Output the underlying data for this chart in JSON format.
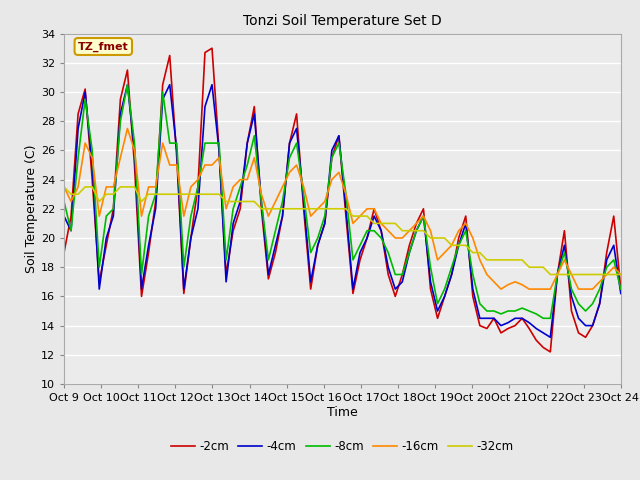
{
  "title": "Tonzi Soil Temperature Set D",
  "xlabel": "Time",
  "ylabel": "Soil Temperature (C)",
  "ylim": [
    10,
    34
  ],
  "yticks": [
    10,
    12,
    14,
    16,
    18,
    20,
    22,
    24,
    26,
    28,
    30,
    32,
    34
  ],
  "xtick_labels": [
    "Oct 9",
    "Oct 10",
    "Oct 11",
    "Oct 12",
    "Oct 13",
    "Oct 14",
    "Oct 15",
    "Oct 16",
    "Oct 17",
    "Oct 18",
    "Oct 19",
    "Oct 20",
    "Oct 21",
    "Oct 22",
    "Oct 23",
    "Oct 24"
  ],
  "legend_labels": [
    "-2cm",
    "-4cm",
    "-8cm",
    "-16cm",
    "-32cm"
  ],
  "line_colors": [
    "#cc0000",
    "#0000cc",
    "#00bb00",
    "#ff8800",
    "#cccc00"
  ],
  "annotation_text": "TZ_fmet",
  "annotation_color": "#880000",
  "annotation_bg": "#ffffcc",
  "annotation_border": "#cc9900",
  "fig_bg": "#e8e8e8",
  "plot_bg": "#ebebeb",
  "grid_color": "#ffffff",
  "depth_2cm": [
    19.0,
    21.5,
    28.5,
    30.2,
    24.0,
    17.0,
    19.5,
    22.0,
    29.5,
    31.5,
    25.0,
    16.0,
    19.0,
    22.5,
    30.5,
    32.5,
    25.5,
    16.2,
    20.0,
    23.5,
    32.7,
    33.0,
    26.0,
    17.5,
    20.5,
    22.0,
    26.5,
    29.0,
    22.0,
    17.2,
    19.0,
    21.5,
    26.5,
    28.5,
    22.0,
    16.5,
    19.5,
    21.0,
    25.5,
    27.0,
    21.5,
    16.2,
    18.5,
    20.0,
    22.0,
    20.5,
    17.5,
    16.0,
    17.5,
    19.5,
    21.0,
    22.0,
    16.5,
    14.5,
    16.0,
    17.5,
    20.0,
    21.5,
    16.0,
    14.0,
    13.8,
    14.5,
    13.5,
    13.8,
    14.0,
    14.5,
    13.8,
    13.0,
    12.5,
    12.2,
    17.5,
    20.5,
    15.0,
    13.5,
    13.2,
    14.0,
    15.5,
    19.0,
    21.5,
    16.5
  ],
  "depth_4cm": [
    21.5,
    20.5,
    27.5,
    30.0,
    25.0,
    16.5,
    20.0,
    21.5,
    28.5,
    30.5,
    26.0,
    16.5,
    19.5,
    22.0,
    29.5,
    30.5,
    26.0,
    16.5,
    20.0,
    22.0,
    29.0,
    30.5,
    26.0,
    17.0,
    21.0,
    22.5,
    26.5,
    28.5,
    22.5,
    17.5,
    19.5,
    21.5,
    26.5,
    27.5,
    22.5,
    17.0,
    19.5,
    21.0,
    26.0,
    27.0,
    22.0,
    16.5,
    19.0,
    20.0,
    21.5,
    20.5,
    18.0,
    16.5,
    17.0,
    19.0,
    20.5,
    21.5,
    17.0,
    15.0,
    16.0,
    17.5,
    19.5,
    21.0,
    16.5,
    14.5,
    14.5,
    14.5,
    14.0,
    14.2,
    14.5,
    14.5,
    14.2,
    13.8,
    13.5,
    13.2,
    17.5,
    19.5,
    16.0,
    14.5,
    14.0,
    14.0,
    15.5,
    18.5,
    19.5,
    16.2
  ],
  "depth_8cm": [
    22.5,
    20.5,
    25.5,
    29.5,
    26.0,
    18.0,
    21.5,
    22.0,
    28.0,
    30.5,
    26.5,
    17.5,
    21.5,
    23.0,
    30.0,
    26.5,
    26.5,
    18.0,
    21.5,
    23.5,
    26.5,
    26.5,
    26.5,
    18.5,
    22.0,
    23.5,
    25.0,
    27.0,
    22.5,
    18.5,
    20.5,
    22.5,
    25.5,
    26.5,
    23.0,
    19.0,
    20.0,
    21.5,
    25.5,
    26.5,
    23.0,
    18.5,
    19.5,
    20.5,
    20.5,
    20.0,
    19.0,
    17.5,
    17.5,
    19.0,
    20.5,
    21.5,
    18.0,
    15.5,
    16.5,
    18.0,
    19.5,
    20.5,
    17.5,
    15.5,
    15.0,
    15.0,
    14.8,
    15.0,
    15.0,
    15.2,
    15.0,
    14.8,
    14.5,
    14.5,
    17.5,
    19.0,
    16.5,
    15.5,
    15.0,
    15.5,
    16.5,
    18.0,
    18.5,
    16.5
  ],
  "depth_16cm": [
    23.5,
    22.5,
    23.5,
    26.5,
    25.5,
    21.5,
    23.5,
    23.5,
    25.5,
    27.5,
    26.0,
    21.5,
    23.5,
    23.5,
    26.5,
    25.0,
    25.0,
    21.5,
    23.5,
    24.0,
    25.0,
    25.0,
    25.5,
    22.0,
    23.5,
    24.0,
    24.0,
    25.5,
    23.0,
    21.5,
    22.5,
    23.5,
    24.5,
    25.0,
    23.5,
    21.5,
    22.0,
    22.5,
    24.0,
    24.5,
    23.0,
    21.0,
    21.5,
    22.0,
    22.0,
    21.0,
    20.5,
    20.0,
    20.0,
    20.5,
    21.0,
    21.5,
    20.5,
    18.5,
    19.0,
    19.5,
    20.5,
    21.0,
    20.0,
    18.5,
    17.5,
    17.0,
    16.5,
    16.8,
    17.0,
    16.8,
    16.5,
    16.5,
    16.5,
    16.5,
    17.5,
    18.5,
    17.5,
    16.5,
    16.5,
    16.5,
    17.0,
    17.5,
    18.0,
    17.5
  ],
  "depth_32cm": [
    23.5,
    23.0,
    23.0,
    23.5,
    23.5,
    22.5,
    23.0,
    23.0,
    23.5,
    23.5,
    23.5,
    22.5,
    23.0,
    23.0,
    23.0,
    23.0,
    23.0,
    23.0,
    23.0,
    23.0,
    23.0,
    23.0,
    23.0,
    22.5,
    22.5,
    22.5,
    22.5,
    22.5,
    22.0,
    22.0,
    22.0,
    22.0,
    22.0,
    22.0,
    22.0,
    22.0,
    22.0,
    22.0,
    22.0,
    22.0,
    22.0,
    21.5,
    21.5,
    21.5,
    21.0,
    21.0,
    21.0,
    21.0,
    20.5,
    20.5,
    20.5,
    20.5,
    20.0,
    20.0,
    20.0,
    19.5,
    19.5,
    19.5,
    19.0,
    19.0,
    18.5,
    18.5,
    18.5,
    18.5,
    18.5,
    18.5,
    18.0,
    18.0,
    18.0,
    17.5,
    17.5,
    17.5,
    17.5,
    17.5,
    17.5,
    17.5,
    17.5,
    17.5,
    17.5,
    17.5
  ]
}
